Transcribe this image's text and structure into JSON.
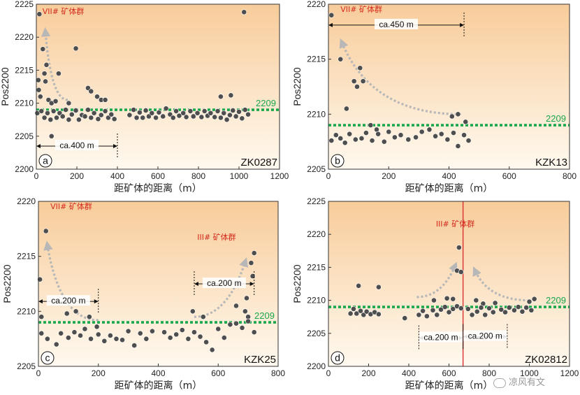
{
  "watermark": "凉风有文",
  "colors": {
    "bg_top": "#f8cc9a",
    "bg_bottom": "#fff9ef",
    "point": "#4e4e4e",
    "ref": "#1aa64a",
    "group": "#d42a1c",
    "arrow": "#b7b7b7",
    "vline": "#d83030"
  },
  "chart_data": [
    {
      "panel": "a",
      "title": "ZK0287",
      "type": "scatter",
      "xlabel": "距矿体的距离（m）",
      "ylabel": "Pos2200",
      "xlim": [
        0,
        1200
      ],
      "ylim": [
        2200,
        2225
      ],
      "xticks": [
        0,
        200,
        400,
        600,
        800,
        1000,
        1200
      ],
      "yticks": [
        2200,
        2205,
        2210,
        2215,
        2220,
        2225
      ],
      "reference_line": {
        "y": 2209,
        "label": "2209"
      },
      "group_labels": [
        {
          "text": "VII#  矿体群",
          "x": 30,
          "y": 2223.5
        }
      ],
      "distance_markers": [
        {
          "label": "ca.400 m",
          "x1": 0,
          "x2": 400,
          "y": 2203.5
        }
      ],
      "arrows": [
        {
          "from": [
            155,
            2210.5
          ],
          "to": [
            45,
            2220.8
          ]
        }
      ],
      "points": [
        [
          15,
          2223.5
        ],
        [
          10,
          2213.5
        ],
        [
          12,
          2212
        ],
        [
          20,
          2211
        ],
        [
          32,
          2218.2
        ],
        [
          40,
          2214.5
        ],
        [
          45,
          2213.3
        ],
        [
          50,
          2215.8
        ],
        [
          60,
          2210.5
        ],
        [
          75,
          2210
        ],
        [
          95,
          2210.3
        ],
        [
          110,
          2214.5
        ],
        [
          160,
          2210
        ],
        [
          195,
          2218.3
        ],
        [
          255,
          2212.3
        ],
        [
          270,
          2211.8
        ],
        [
          300,
          2211
        ],
        [
          320,
          2210.5
        ],
        [
          340,
          2210.5
        ],
        [
          75,
          2205
        ],
        [
          910,
          2211
        ],
        [
          960,
          2211.2
        ],
        [
          1025,
          2223.8
        ],
        [
          5,
          2208.5
        ],
        [
          25,
          2208.8
        ],
        [
          40,
          2207.8
        ],
        [
          55,
          2208.5
        ],
        [
          70,
          2207.5
        ],
        [
          85,
          2208.8
        ],
        [
          100,
          2207.8
        ],
        [
          115,
          2208.5
        ],
        [
          130,
          2208
        ],
        [
          145,
          2209
        ],
        [
          160,
          2207.5
        ],
        [
          175,
          2208.3
        ],
        [
          195,
          2208.9
        ],
        [
          210,
          2207.5
        ],
        [
          225,
          2208.2
        ],
        [
          240,
          2208
        ],
        [
          255,
          2209
        ],
        [
          270,
          2207.8
        ],
        [
          285,
          2208.5
        ],
        [
          305,
          2207.6
        ],
        [
          320,
          2208.2
        ],
        [
          340,
          2208.8
        ],
        [
          355,
          2207.8
        ],
        [
          370,
          2208.3
        ],
        [
          385,
          2207.6
        ],
        [
          460,
          2208.2
        ],
        [
          480,
          2209
        ],
        [
          495,
          2207.8
        ],
        [
          510,
          2208.6
        ],
        [
          525,
          2207.8
        ],
        [
          540,
          2208.9
        ],
        [
          555,
          2208
        ],
        [
          570,
          2208.5
        ],
        [
          590,
          2207.8
        ],
        [
          605,
          2208.6
        ],
        [
          625,
          2208
        ],
        [
          640,
          2209.2
        ],
        [
          660,
          2208.3
        ],
        [
          675,
          2207.8
        ],
        [
          690,
          2208.8
        ],
        [
          705,
          2208.1
        ],
        [
          725,
          2208.5
        ],
        [
          740,
          2207.9
        ],
        [
          760,
          2208.8
        ],
        [
          775,
          2208
        ],
        [
          795,
          2208.5
        ],
        [
          815,
          2207.9
        ],
        [
          830,
          2208.8
        ],
        [
          845,
          2208.1
        ],
        [
          860,
          2208.5
        ],
        [
          880,
          2207.9
        ],
        [
          895,
          2208.8
        ],
        [
          910,
          2207.8
        ],
        [
          925,
          2208.5
        ],
        [
          940,
          2207.5
        ],
        [
          955,
          2208.2
        ],
        [
          970,
          2208.9
        ],
        [
          985,
          2208
        ],
        [
          1000,
          2208.7
        ],
        [
          1015,
          2207.7
        ],
        [
          1030,
          2209
        ],
        [
          1045,
          2208.3
        ]
      ]
    },
    {
      "panel": "b",
      "title": "KZK13",
      "type": "scatter",
      "xlabel": "距矿体的距离（m）",
      "ylabel": "Pos2200",
      "xlim": [
        0,
        800
      ],
      "ylim": [
        2205,
        2220
      ],
      "xticks": [
        0,
        200,
        400,
        600,
        800
      ],
      "yticks": [
        2205,
        2210,
        2215,
        2220
      ],
      "reference_line": {
        "y": 2209,
        "label": "2209"
      },
      "group_labels": [
        {
          "text": "VII#  矿体群",
          "x": 40,
          "y": 2219.3
        }
      ],
      "distance_markers": [
        {
          "label": "ca.450 m",
          "x1": 0,
          "x2": 450,
          "y": 2218.1
        }
      ],
      "arrows": [
        {
          "from": [
            440,
            2210
          ],
          "to": [
            45,
            2216.5
          ]
        }
      ],
      "points": [
        [
          10,
          2219
        ],
        [
          40,
          2215
        ],
        [
          60,
          2210.5
        ],
        [
          85,
          2213
        ],
        [
          95,
          2212.5
        ],
        [
          105,
          2214.2
        ],
        [
          115,
          2213
        ],
        [
          140,
          2209
        ],
        [
          160,
          2208.6
        ],
        [
          410,
          2209.8
        ],
        [
          430,
          2210
        ],
        [
          455,
          2209.3
        ],
        [
          10,
          2207.6
        ],
        [
          25,
          2208.1
        ],
        [
          40,
          2207.8
        ],
        [
          55,
          2207.4
        ],
        [
          70,
          2208.2
        ],
        [
          90,
          2207.7
        ],
        [
          110,
          2207.8
        ],
        [
          125,
          2208.3
        ],
        [
          145,
          2207.6
        ],
        [
          165,
          2208.2
        ],
        [
          185,
          2207.5
        ],
        [
          200,
          2208.4
        ],
        [
          220,
          2207.9
        ],
        [
          240,
          2208.1
        ],
        [
          265,
          2207.7
        ],
        [
          290,
          2207.9
        ],
        [
          310,
          2208.4
        ],
        [
          335,
          2208.6
        ],
        [
          355,
          2208
        ],
        [
          375,
          2208.2
        ],
        [
          395,
          2207.7
        ],
        [
          415,
          2208.3
        ],
        [
          430,
          2207.1
        ],
        [
          450,
          2208.1
        ],
        [
          465,
          2207.6
        ]
      ]
    },
    {
      "panel": "c",
      "title": "KZK25",
      "type": "scatter",
      "xlabel": "距矿体的距离（m）",
      "ylabel": "Pos2200",
      "xlim": [
        0,
        800
      ],
      "ylim": [
        2205,
        2220
      ],
      "xticks": [
        0,
        200,
        400,
        600,
        800
      ],
      "yticks": [
        2205,
        2210,
        2215,
        2220
      ],
      "reference_line": {
        "y": 2209,
        "label": "2209"
      },
      "group_labels": [
        {
          "text": "VII#  矿体群",
          "x": 40,
          "y": 2219.3
        },
        {
          "text": "III#  矿体群",
          "x": 530,
          "y": 2216.5
        }
      ],
      "distance_markers": [
        {
          "label": "ca.200 m",
          "x1": 0,
          "x2": 200,
          "y": 2210.9
        },
        {
          "label": "ca.200 m",
          "x1": 520,
          "x2": 720,
          "y": 2212.5
        }
      ],
      "arrows": [
        {
          "from": [
            200,
            2209.2
          ],
          "to": [
            30,
            2216
          ]
        },
        {
          "from": [
            520,
            2209.5
          ],
          "to": [
            690,
            2214.5
          ]
        }
      ],
      "points": [
        [
          5,
          2212.9
        ],
        [
          25,
          2217.3
        ],
        [
          10,
          2209.5
        ],
        [
          95,
          2209.8
        ],
        [
          125,
          2210
        ],
        [
          170,
          2209.5
        ],
        [
          195,
          2208.6
        ],
        [
          515,
          2210
        ],
        [
          550,
          2209.5
        ],
        [
          660,
          2210.5
        ],
        [
          690,
          2210
        ],
        [
          695,
          2211.2
        ],
        [
          700,
          2209.5
        ],
        [
          710,
          2214.4
        ],
        [
          715,
          2213.2
        ],
        [
          720,
          2215.3
        ],
        [
          10,
          2208
        ],
        [
          30,
          2207.5
        ],
        [
          60,
          2207
        ],
        [
          75,
          2208
        ],
        [
          100,
          2207.6
        ],
        [
          120,
          2208.1
        ],
        [
          140,
          2207.8
        ],
        [
          155,
          2208.4
        ],
        [
          175,
          2207.5
        ],
        [
          200,
          2207.9
        ],
        [
          220,
          2207.3
        ],
        [
          240,
          2207.8
        ],
        [
          260,
          2207.5
        ],
        [
          280,
          2207.4
        ],
        [
          300,
          2208.2
        ],
        [
          320,
          2206.9
        ],
        [
          340,
          2208
        ],
        [
          360,
          2207.5
        ],
        [
          380,
          2208.2
        ],
        [
          420,
          2208.1
        ],
        [
          440,
          2207.6
        ],
        [
          460,
          2207.9
        ],
        [
          480,
          2208.3
        ],
        [
          500,
          2207.5
        ],
        [
          520,
          2208.1
        ],
        [
          540,
          2207.7
        ],
        [
          560,
          2207.2
        ],
        [
          580,
          2206.5
        ],
        [
          600,
          2208.4
        ],
        [
          620,
          2207.6
        ],
        [
          640,
          2208.8
        ],
        [
          660,
          2208.9
        ],
        [
          680,
          2208.5
        ],
        [
          700,
          2209.1
        ],
        [
          720,
          2208.1
        ]
      ]
    },
    {
      "panel": "d",
      "title": "ZK02812",
      "type": "scatter",
      "xlabel": "距矿体的距离（m）",
      "ylabel": "Pos2200",
      "xlim": [
        0,
        1200
      ],
      "ylim": [
        2200,
        2225
      ],
      "xticks": [
        0,
        200,
        400,
        600,
        800,
        1000,
        1200
      ],
      "yticks": [
        2200,
        2205,
        2210,
        2215,
        2220,
        2225
      ],
      "reference_line": {
        "y": 2209,
        "label": "2209"
      },
      "group_labels": [
        {
          "text": "III#  矿体群",
          "x": 535,
          "y": 2221.2
        }
      ],
      "vertical_line": {
        "x": 670
      },
      "distance_markers": [
        {
          "label": "ca.200 m",
          "x1": 450,
          "x2": 670,
          "y": 2204.3
        },
        {
          "label": "ca.200 m",
          "x1": 670,
          "x2": 890,
          "y": 2204.5
        }
      ],
      "arrows": [
        {
          "from": [
            440,
            2210.5
          ],
          "to": [
            630,
            2215.2
          ]
        },
        {
          "from": [
            1000,
            2210
          ],
          "to": [
            730,
            2214.5
          ]
        }
      ],
      "points": [
        [
          150,
          2212.2
        ],
        [
          250,
          2212
        ],
        [
          525,
          2210
        ],
        [
          590,
          2210.3
        ],
        [
          620,
          2210.2
        ],
        [
          640,
          2214.5
        ],
        [
          650,
          2218
        ],
        [
          660,
          2214.3
        ],
        [
          735,
          2210
        ],
        [
          770,
          2209.5
        ],
        [
          830,
          2209.6
        ],
        [
          1000,
          2209.8
        ],
        [
          1025,
          2210.2
        ],
        [
          110,
          2208
        ],
        [
          125,
          2208.7
        ],
        [
          140,
          2208
        ],
        [
          160,
          2208.4
        ],
        [
          175,
          2207.8
        ],
        [
          190,
          2208.3
        ],
        [
          210,
          2207.9
        ],
        [
          230,
          2208.2
        ],
        [
          250,
          2207.9
        ],
        [
          380,
          2207.3
        ],
        [
          450,
          2207.8
        ],
        [
          470,
          2208.4
        ],
        [
          490,
          2207.6
        ],
        [
          520,
          2208.5
        ],
        [
          540,
          2207.8
        ],
        [
          560,
          2208.6
        ],
        [
          580,
          2209
        ],
        [
          600,
          2208.2
        ],
        [
          620,
          2208.7
        ],
        [
          640,
          2209.1
        ],
        [
          660,
          2208.8
        ],
        [
          695,
          2208.7
        ],
        [
          715,
          2207.8
        ],
        [
          740,
          2208.3
        ],
        [
          760,
          2208.9
        ],
        [
          780,
          2207.8
        ],
        [
          800,
          2208.8
        ],
        [
          820,
          2208.2
        ],
        [
          860,
          2208.6
        ],
        [
          880,
          2208.2
        ],
        [
          900,
          2208.9
        ],
        [
          925,
          2208.5
        ],
        [
          945,
          2209
        ],
        [
          965,
          2208.3
        ],
        [
          985,
          2208.9
        ],
        [
          1010,
          2208.5
        ]
      ]
    }
  ]
}
